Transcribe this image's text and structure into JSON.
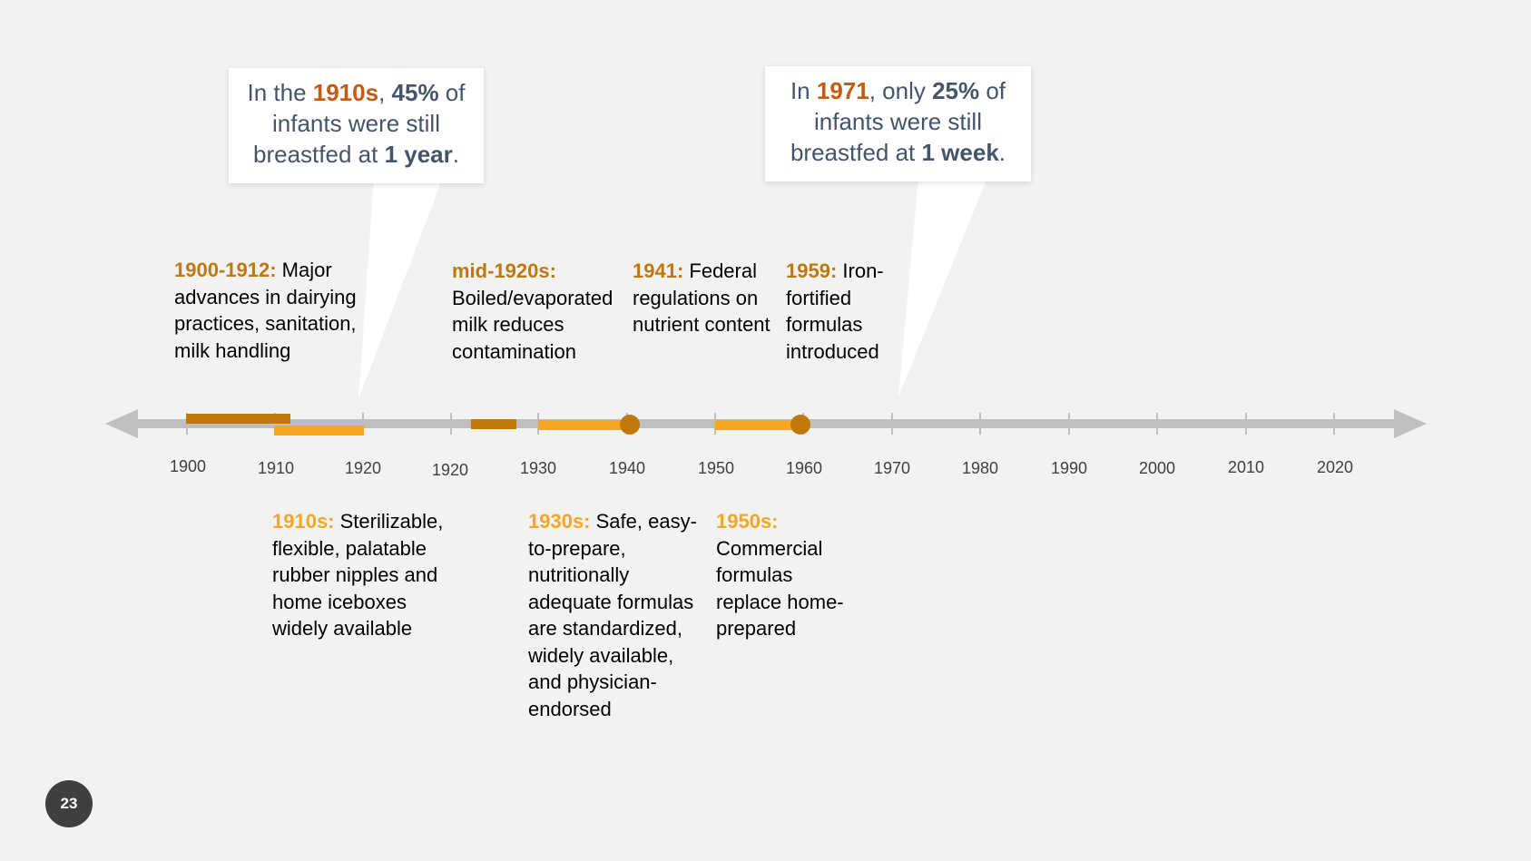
{
  "callouts": {
    "c1910": {
      "pre": "In the ",
      "year": "1910s",
      "sep": ", ",
      "pct": "45%",
      "mid": " of infants were still breastfed at ",
      "dur": "1 year",
      "end": "."
    },
    "c1971": {
      "pre": "In ",
      "year": "1971",
      "sep": ", only ",
      "pct": "25%",
      "mid": " of infants were still breastfed at ",
      "dur": "1 week",
      "end": "."
    }
  },
  "events_top": [
    {
      "label": "1900-1912:",
      "text": " Major advances in dairying practices, sanitation, milk handling"
    },
    {
      "label": "mid-1920s:",
      "text": " Boiled/evaporated milk reduces contamination"
    },
    {
      "label": "1941:",
      "text": " Federal regulations on nutrient content"
    },
    {
      "label": "1959:",
      "text": " Iron-fortified formulas introduced"
    }
  ],
  "events_bottom": [
    {
      "label": "1910s:",
      "text": " Sterilizable, flexible, palatable rubber nipples and home iceboxes widely available"
    },
    {
      "label": "1930s:",
      "text": " Safe, easy-to-prepare, nutritionally adequate formulas are standardized, widely available, and physician-endorsed"
    },
    {
      "label": "1950s:",
      "text": " Commercial formulas replace home-prepared"
    }
  ],
  "ticks": [
    "1900",
    "1910",
    "1920",
    "1920",
    "1930",
    "1940",
    "1950",
    "1960",
    "1970",
    "1980",
    "1990",
    "2000",
    "2010",
    "2020"
  ],
  "colors": {
    "dark_orange": "#c0780a",
    "light_orange": "#f5a623",
    "axis_gray": "#bfbfbf",
    "accent": "#c55a11"
  },
  "page_number": "23"
}
